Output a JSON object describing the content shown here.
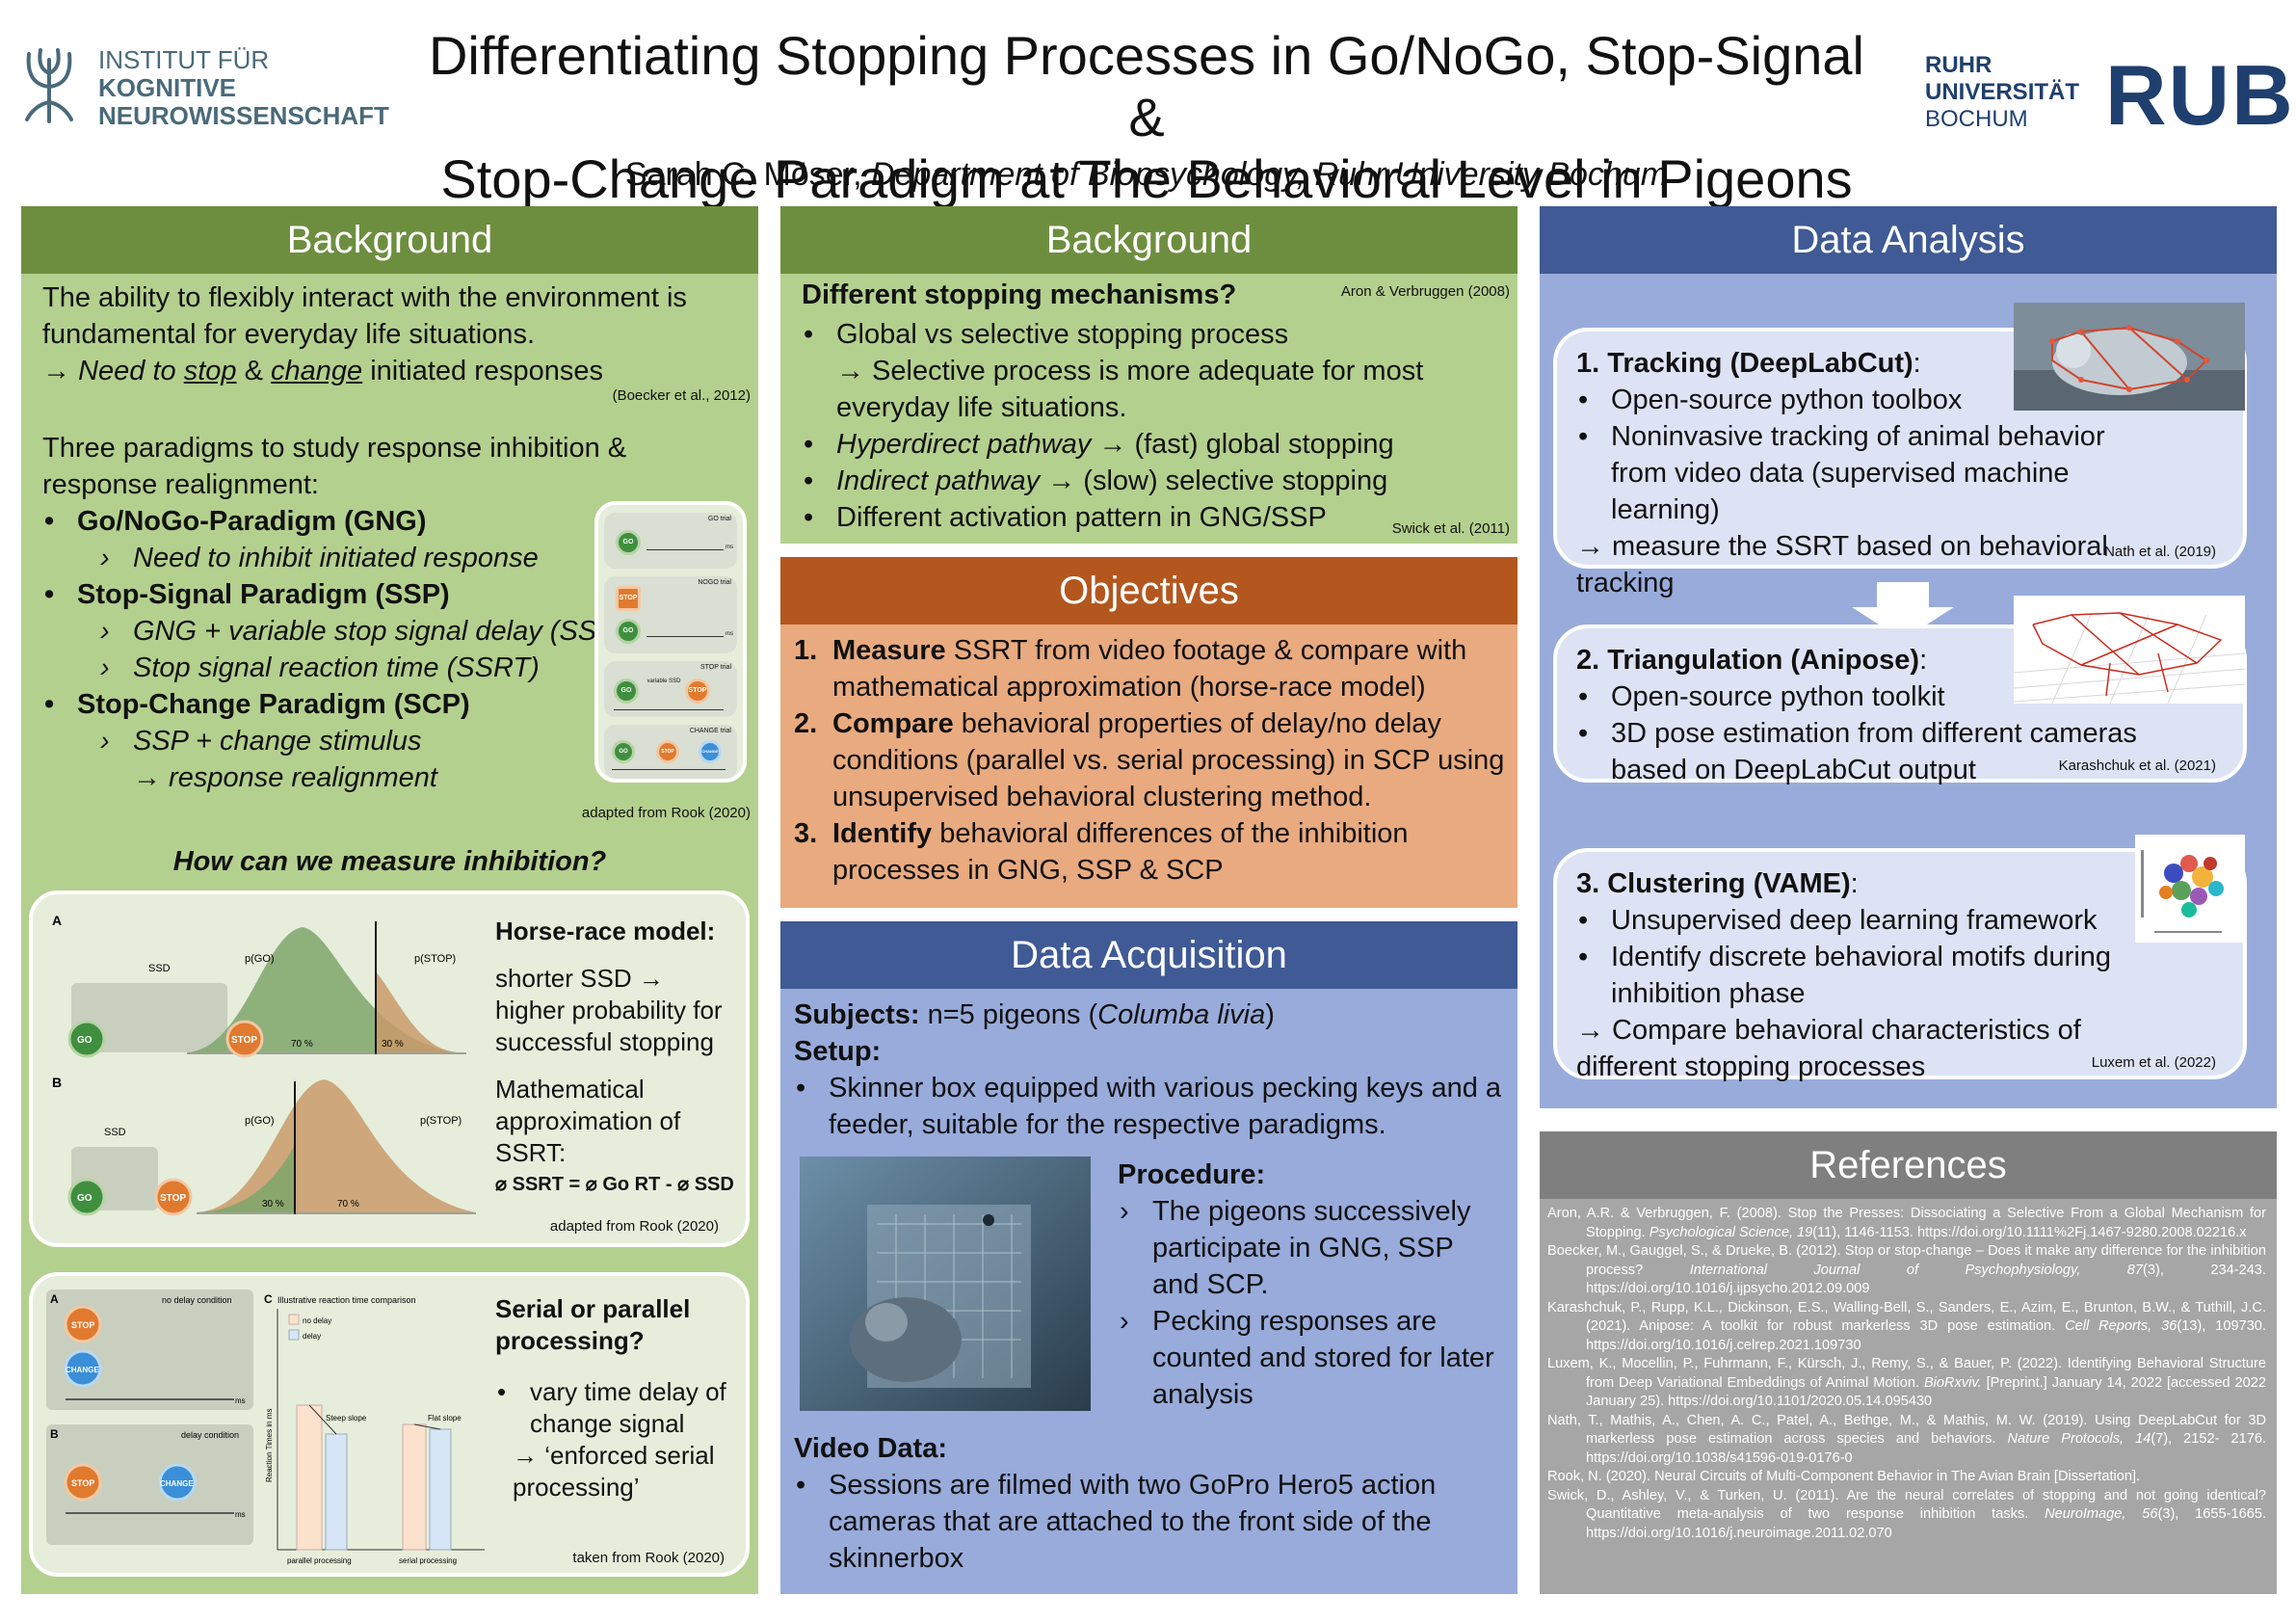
{
  "header": {
    "institute_logo": {
      "line1": "INSTITUT FÜR",
      "line2": "KOGNITIVE",
      "line3": "NEUROWISSENSCHAFT"
    },
    "title_line1": "Differentiating Stopping Processes in Go/NoGo, Stop-Signal &",
    "title_line2": "Stop-Change Paradigm at The Behavioral Level in Pigeons",
    "author": "Sarah C. Möser,",
    "affiliation": "Department of Biopsychology, Ruhr University Bochum",
    "rub_text": {
      "line1": "RUHR",
      "line2": "UNIVERSITÄT",
      "line3": "BOCHUM"
    },
    "rub_logo": "RUB"
  },
  "col1": {
    "header": "Background",
    "intro1": "The ability to flexibly interact with the environment is fundamental for everyday life situations.",
    "intro2_arrow": "→",
    "intro2_a": "Need to",
    "intro2_stop": "stop",
    "intro2_amp": "&",
    "intro2_change": "change",
    "intro2_b": "initiated responses",
    "cite1": "(Boecker et al., 2012)",
    "paradigms_intro": "Three paradigms to study response inhibition & response realignment:",
    "gng": "Go/NoGo-Paradigm (GNG)",
    "gng_sub": "Need to inhibit initiated response",
    "ssp": "Stop-Signal Paradigm (SSP)",
    "ssp_sub1": "GNG + variable stop signal delay (SSD)",
    "ssp_sub2": "Stop signal reaction time (SSRT)",
    "scp": "Stop-Change Paradigm (SCP)",
    "scp_sub1": "SSP + change stimulus",
    "scp_sub2": "→ response realignment",
    "cite2": "adapted from Rook (2020)",
    "trials": {
      "go": "GO trial",
      "nogo": "NOGO trial",
      "stop": "STOP trial",
      "change": "CHANGE trial",
      "go_label": "GO",
      "stop_label": "STOP",
      "change_label": "CHANGE",
      "variable_ssd": "variable SSD",
      "ms": "ms"
    },
    "question": "How can we measure inhibition?",
    "horse_title": "Horse-race model:",
    "horse_text": "shorter SSD → higher probability for successful stopping",
    "math_text": "Mathematical approximation of SSRT:",
    "formula": "⌀ SSRT = ⌀ Go RT - ⌀ SSD",
    "cite3": "adapted from Rook (2020)",
    "dist": {
      "a_label": "A",
      "b_label": "B",
      "ssd": "SSD",
      "pgo": "p(GO)",
      "pstop": "p(STOP)",
      "a_70": "70 %",
      "a_30": "30 %",
      "b_30": "30 %",
      "b_70": "70 %",
      "go": "GO",
      "stop": "STOP"
    },
    "serial_title": "Serial or parallel processing?",
    "serial_text": "vary time delay of change signal",
    "serial_text2": "→ ‘enforced serial processing’",
    "cite4": "taken from Rook (2020)",
    "rt_fig": {
      "a": "A",
      "b": "B",
      "c": "C",
      "no_delay_cond": "no delay condition",
      "delay_cond": "delay condition",
      "title": "Illustrative reaction time comparison",
      "legend_no_delay": "no delay",
      "legend_delay": "delay",
      "steep": "Steep slope",
      "flat": "Flat slope",
      "ylabel": "Reaction Times in ms",
      "parallel": "parallel processing",
      "serial": "serial processing",
      "stop": "STOP",
      "change": "CHANGE",
      "ms": "ms"
    }
  },
  "col2": {
    "header": "Background",
    "mech_title": "Different stopping mechanisms?",
    "mech_cite": "Aron & Verbruggen (2008)",
    "m1": "Global vs selective stopping process",
    "m1b": "→ Selective process is more adequate for most everyday life situations.",
    "m2_em": "Hyperdirect pathway",
    "m2": "→ (fast) global stopping",
    "m3_em": "Indirect pathway",
    "m3": "→ (slow) selective stopping",
    "m4": "Different activation pattern in GNG/SSP",
    "m4_cite": "Swick et al. (2011)",
    "obj_header": "Objectives",
    "o1_num": "1.",
    "o1_b": "Measure",
    "o1": "SSRT from video footage & compare with mathematical approximation (horse-race model)",
    "o2_num": "2.",
    "o2_b": "Compare",
    "o2": "behavioral properties of delay/no delay conditions (parallel vs. serial processing) in SCP using unsupervised behavioral clustering method.",
    "o3_num": "3.",
    "o3_b": "Identify",
    "o3": "behavioral differences of the inhibition processes in GNG, SSP & SCP",
    "acq_header": "Data Acquisition",
    "subjects_label": "Subjects:",
    "subjects": "n=5 pigeons (",
    "species": "Columba livia",
    "subjects_end": ")",
    "setup_label": "Setup:",
    "setup": "Skinner box equipped with various pecking keys and a feeder, suitable for the respective paradigms.",
    "proc_label": "Procedure:",
    "proc1": "The pigeons successively participate in GNG, SSP and SCP.",
    "proc2": "Pecking responses are counted and stored for later analysis",
    "video_label": "Video Data:",
    "video": "Sessions are filmed with two GoPro Hero5 action cameras that are attached to the front side of the skinnerbox"
  },
  "col3": {
    "header": "Data Analysis",
    "s1_title": "1. Tracking (DeepLabCut)",
    "s1_a": "Open-source python toolbox",
    "s1_b": "Noninvasive tracking of animal behavior from video data (supervised machine learning)",
    "s1_c": "→ measure the SSRT based on behavioral tracking",
    "s1_cite": "Nath et al. (2019)",
    "s2_title": "2. Triangulation (Anipose)",
    "s2_a": "Open-source python toolkit",
    "s2_b": "3D pose estimation from different cameras based on DeepLabCut output",
    "s2_cite": "Karashchuk et al. (2021)",
    "s3_title": "3. Clustering (VAME)",
    "s3_a": "Unsupervised deep learning framework",
    "s3_b": "Identify discrete behavioral motifs during inhibition phase",
    "s3_c": "→ Compare behavioral characteristics of different stopping processes",
    "s3_cite": "Luxem et al. (2022)",
    "ref_header": "References",
    "refs": [
      {
        "a": "Aron, A.R. & Verbruggen, F. (2008). Stop the Presses: Dissociating a Selective From a Global Mechanism for Stopping. ",
        "j": "Psychological Science, 19",
        "b": "(11), 1146-1153. https://doi.org/10.1111%2Fj.1467-9280.2008.02216.x"
      },
      {
        "a": "Boecker, M., Gauggel, S., & Drueke, B. (2012). Stop or stop-change – Does it make any difference for the inhibition process? ",
        "j": "International Journal of Psychophysiology, 87",
        "b": "(3), 234-243. https://doi.org/10.1016/j.ijpsycho.2012.09.009"
      },
      {
        "a": "Karashchuk, P., Rupp, K.L., Dickinson, E.S., Walling-Bell, S., Sanders, E., Azim, E., Brunton, B.W., & Tuthill, J.C. (2021). Anipose: A toolkit for robust markerless 3D pose estimation. ",
        "j": "Cell Reports, 36",
        "b": "(13), 109730. https://doi.org/10.1016/j.celrep.2021.109730"
      },
      {
        "a": "Luxem, K., Mocellin, P., Fuhrmann, F., Kürsch, J., Remy, S., & Bauer, P. (2022). Identifying Behavioral Structure from Deep Variational Embeddings of Animal Motion. ",
        "j": "BioRxviv.",
        "b": " [Preprint.] January 14, 2022 [accessed 2022 January 25). https://doi.org/10.1101/2020.05.14.095430"
      },
      {
        "a": "Nath, T., Mathis, A., Chen, A. C., Patel, A., Bethge, M., & Mathis, M. W. (2019). Using DeepLabCut for 3D markerless pose estimation across species and behaviors. ",
        "j": "Nature Protocols, 14",
        "b": "(7), 2152- 2176. https://doi.org/10.1038/s41596-019-0176-0"
      },
      {
        "a": "Rook, N. (2020). Neural Circuits of Multi-Component Behavior in The Avian Brain [Dissertation].",
        "j": "",
        "b": ""
      },
      {
        "a": "Swick, D., Ashley, V., & Turken, U. (2011). Are the neural correlates of stopping and not going identical? Quantitative meta-analysis of two response inhibition tasks. ",
        "j": "NeuroImage, 56",
        "b": "(3), 1655-1665. https://doi.org/10.1016/j.neuroimage.2011.02.070"
      }
    ]
  }
}
